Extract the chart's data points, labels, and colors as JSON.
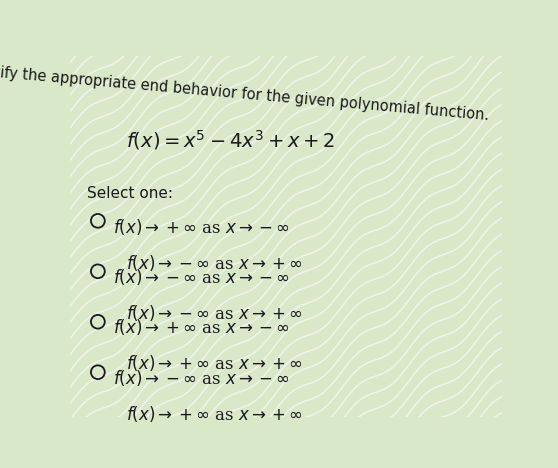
{
  "background_color": "#d8e8c8",
  "title_text": "Identify the appropriate end behavior for the given polynomial function.",
  "function_text": "$f(x) = x^5 - 4x^3 + x + 2$",
  "select_one_text": "Select one:",
  "options": [
    {
      "line1": "$f(x) \\rightarrow +\\infty$ as $x \\rightarrow -\\infty$",
      "line2": "$f(x) \\rightarrow -\\infty$ as $x \\rightarrow +\\infty$"
    },
    {
      "line1": "$f(x) \\rightarrow -\\infty$ as $x \\rightarrow -\\infty$",
      "line2": "$f(x) \\rightarrow -\\infty$ as $x \\rightarrow +\\infty$"
    },
    {
      "line1": "$f(x) \\rightarrow +\\infty$ as $x \\rightarrow -\\infty$",
      "line2": "$f(x) \\rightarrow +\\infty$ as $x \\rightarrow +\\infty$"
    },
    {
      "line1": "$f(x) \\rightarrow -\\infty$ as $x \\rightarrow -\\infty$",
      "line2": "$f(x) \\rightarrow +\\infty$ as $x \\rightarrow +\\infty$"
    }
  ],
  "text_color": "#1a1a1a",
  "circle_color": "#1a1a1a",
  "title_fontsize": 10.5,
  "function_fontsize": 14,
  "select_fontsize": 11,
  "option_fontsize": 12
}
